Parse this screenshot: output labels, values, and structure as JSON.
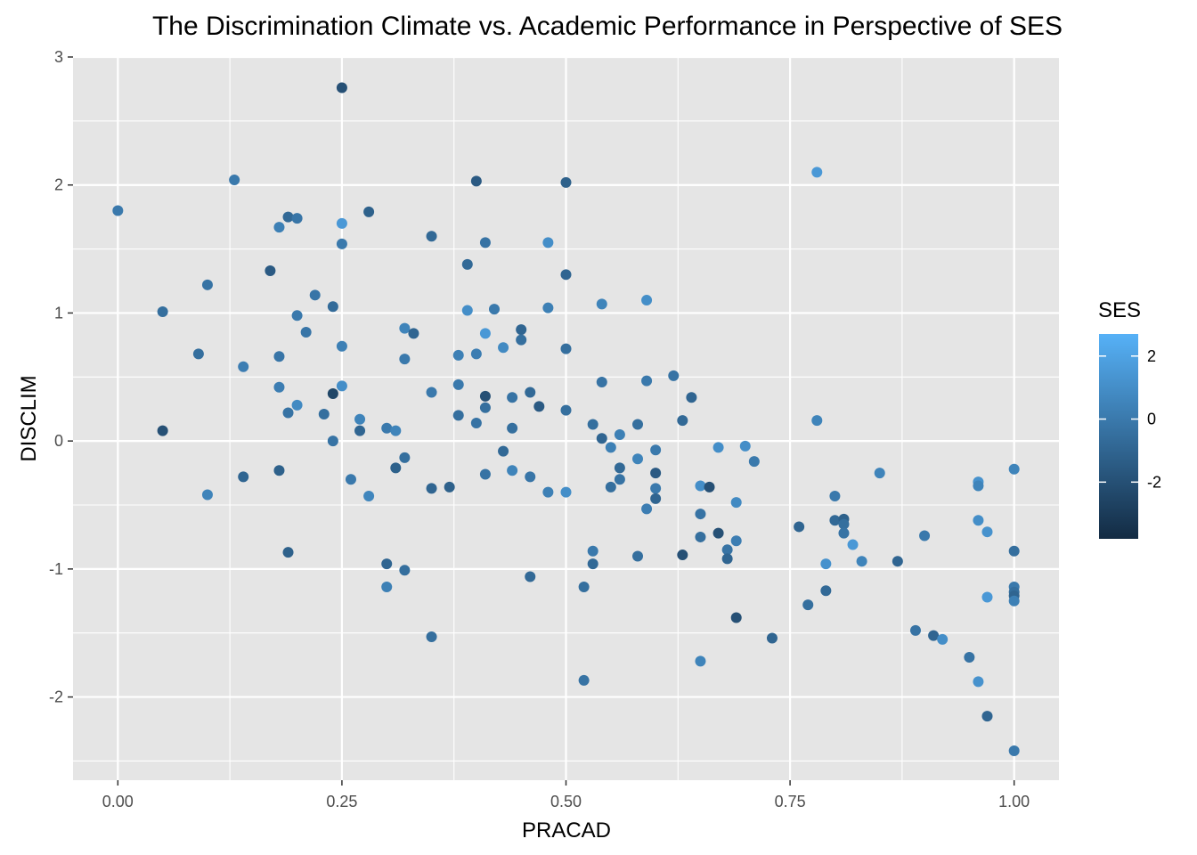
{
  "chart_data": {
    "type": "scatter",
    "title": "The Discrimination Climate vs. Academic Performance in Perspective of SES",
    "xlabel": "PRACAD",
    "ylabel": "DISCLIM",
    "xlim": [
      -0.05,
      1.05
    ],
    "ylim": [
      -2.65,
      3.0
    ],
    "x_ticks": [
      0.0,
      0.25,
      0.5,
      0.75,
      1.0
    ],
    "x_tick_labels": [
      "0.00",
      "0.25",
      "0.50",
      "0.75",
      "1.00"
    ],
    "y_ticks": [
      -2,
      -1,
      0,
      1,
      2,
      3
    ],
    "y_tick_labels": [
      "-2",
      "-1",
      "0",
      "1",
      "2",
      "3"
    ],
    "grid": true,
    "panel_background": "#e5e5e5",
    "gridline_color": "#ffffff",
    "legend": {
      "title": "SES",
      "position": "right",
      "type": "colorbar",
      "low_value": -3.8,
      "high_value": 2.7,
      "low_color": "#132b43",
      "high_color": "#56b1f7",
      "tick_values": [
        2,
        0,
        -2
      ],
      "tick_labels": [
        "2",
        "0",
        "-2"
      ]
    },
    "points": [
      {
        "x": 0.0,
        "y": 1.8,
        "ses": 0.0
      },
      {
        "x": 0.05,
        "y": 1.01,
        "ses": -0.5
      },
      {
        "x": 0.05,
        "y": 0.08,
        "ses": -2.0
      },
      {
        "x": 0.09,
        "y": 0.68,
        "ses": -0.5
      },
      {
        "x": 0.1,
        "y": 1.22,
        "ses": -0.3
      },
      {
        "x": 0.1,
        "y": -0.42,
        "ses": 0.5
      },
      {
        "x": 0.13,
        "y": 2.04,
        "ses": 0.0
      },
      {
        "x": 0.14,
        "y": 0.58,
        "ses": 0.2
      },
      {
        "x": 0.14,
        "y": -0.28,
        "ses": -1.0
      },
      {
        "x": 0.17,
        "y": 1.33,
        "ses": -1.5
      },
      {
        "x": 0.18,
        "y": 1.67,
        "ses": 0.3
      },
      {
        "x": 0.18,
        "y": 0.66,
        "ses": -0.2
      },
      {
        "x": 0.18,
        "y": 0.42,
        "ses": 0.2
      },
      {
        "x": 0.18,
        "y": -0.23,
        "ses": -1.2
      },
      {
        "x": 0.19,
        "y": 1.75,
        "ses": -0.8
      },
      {
        "x": 0.19,
        "y": 0.22,
        "ses": -0.3
      },
      {
        "x": 0.19,
        "y": -0.87,
        "ses": -1.2
      },
      {
        "x": 0.2,
        "y": 1.74,
        "ses": -0.2
      },
      {
        "x": 0.2,
        "y": 0.98,
        "ses": 0.0
      },
      {
        "x": 0.2,
        "y": 0.28,
        "ses": 0.8
      },
      {
        "x": 0.21,
        "y": 0.85,
        "ses": -0.2
      },
      {
        "x": 0.22,
        "y": 1.14,
        "ses": -0.2
      },
      {
        "x": 0.23,
        "y": 0.21,
        "ses": -0.5
      },
      {
        "x": 0.24,
        "y": 1.05,
        "ses": -0.7
      },
      {
        "x": 0.24,
        "y": 0.37,
        "ses": -2.5
      },
      {
        "x": 0.24,
        "y": 0.0,
        "ses": -0.3
      },
      {
        "x": 0.25,
        "y": 2.76,
        "ses": -2.0
      },
      {
        "x": 0.25,
        "y": 1.7,
        "ses": 1.5
      },
      {
        "x": 0.25,
        "y": 1.54,
        "ses": 0.0
      },
      {
        "x": 0.25,
        "y": 0.74,
        "ses": 0.3
      },
      {
        "x": 0.25,
        "y": 0.43,
        "ses": 1.0
      },
      {
        "x": 0.26,
        "y": -0.3,
        "ses": 0.0
      },
      {
        "x": 0.27,
        "y": 0.17,
        "ses": 0.5
      },
      {
        "x": 0.27,
        "y": 0.08,
        "ses": -1.0
      },
      {
        "x": 0.28,
        "y": 1.79,
        "ses": -1.2
      },
      {
        "x": 0.28,
        "y": -0.43,
        "ses": 0.6
      },
      {
        "x": 0.3,
        "y": 0.1,
        "ses": 0.0
      },
      {
        "x": 0.3,
        "y": -0.96,
        "ses": -1.0
      },
      {
        "x": 0.3,
        "y": -1.14,
        "ses": 0.3
      },
      {
        "x": 0.31,
        "y": 0.08,
        "ses": 0.5
      },
      {
        "x": 0.31,
        "y": -0.21,
        "ses": -1.2
      },
      {
        "x": 0.32,
        "y": 0.88,
        "ses": 0.5
      },
      {
        "x": 0.32,
        "y": 0.64,
        "ses": 0.0
      },
      {
        "x": 0.32,
        "y": -0.13,
        "ses": -0.5
      },
      {
        "x": 0.32,
        "y": -1.01,
        "ses": -0.5
      },
      {
        "x": 0.33,
        "y": 0.84,
        "ses": -1.0
      },
      {
        "x": 0.35,
        "y": 1.6,
        "ses": -0.8
      },
      {
        "x": 0.35,
        "y": 0.38,
        "ses": 0.0
      },
      {
        "x": 0.35,
        "y": -0.37,
        "ses": -1.0
      },
      {
        "x": 0.35,
        "y": -1.53,
        "ses": -0.5
      },
      {
        "x": 0.37,
        "y": -0.36,
        "ses": -1.2
      },
      {
        "x": 0.38,
        "y": 0.67,
        "ses": 0.3
      },
      {
        "x": 0.38,
        "y": 0.44,
        "ses": 0.0
      },
      {
        "x": 0.38,
        "y": 0.2,
        "ses": -0.5
      },
      {
        "x": 0.39,
        "y": 1.38,
        "ses": -0.8
      },
      {
        "x": 0.39,
        "y": 1.02,
        "ses": 1.0
      },
      {
        "x": 0.4,
        "y": 2.03,
        "ses": -1.5
      },
      {
        "x": 0.4,
        "y": 0.68,
        "ses": 0.2
      },
      {
        "x": 0.4,
        "y": 0.14,
        "ses": -0.3
      },
      {
        "x": 0.41,
        "y": 1.55,
        "ses": -0.3
      },
      {
        "x": 0.41,
        "y": 0.84,
        "ses": 1.5
      },
      {
        "x": 0.41,
        "y": 0.35,
        "ses": -2.0
      },
      {
        "x": 0.41,
        "y": 0.26,
        "ses": -0.5
      },
      {
        "x": 0.41,
        "y": -0.26,
        "ses": -0.3
      },
      {
        "x": 0.42,
        "y": 1.03,
        "ses": 0.0
      },
      {
        "x": 0.43,
        "y": 0.73,
        "ses": 0.8
      },
      {
        "x": 0.43,
        "y": -0.08,
        "ses": -0.8
      },
      {
        "x": 0.44,
        "y": 0.34,
        "ses": -0.3
      },
      {
        "x": 0.44,
        "y": 0.1,
        "ses": -0.5
      },
      {
        "x": 0.44,
        "y": -0.23,
        "ses": 0.5
      },
      {
        "x": 0.45,
        "y": 0.87,
        "ses": -1.0
      },
      {
        "x": 0.45,
        "y": 0.79,
        "ses": -0.5
      },
      {
        "x": 0.46,
        "y": 0.38,
        "ses": -0.8
      },
      {
        "x": 0.46,
        "y": -0.28,
        "ses": -0.2
      },
      {
        "x": 0.46,
        "y": -1.06,
        "ses": -0.8
      },
      {
        "x": 0.47,
        "y": 0.27,
        "ses": -1.5
      },
      {
        "x": 0.48,
        "y": 1.55,
        "ses": 1.0
      },
      {
        "x": 0.48,
        "y": 1.04,
        "ses": 0.3
      },
      {
        "x": 0.48,
        "y": -0.4,
        "ses": 0.3
      },
      {
        "x": 0.5,
        "y": 2.02,
        "ses": -1.2
      },
      {
        "x": 0.5,
        "y": 1.3,
        "ses": -1.0
      },
      {
        "x": 0.5,
        "y": 0.72,
        "ses": -0.5
      },
      {
        "x": 0.5,
        "y": 0.24,
        "ses": -0.5
      },
      {
        "x": 0.5,
        "y": -0.4,
        "ses": 1.0
      },
      {
        "x": 0.52,
        "y": -1.14,
        "ses": -0.5
      },
      {
        "x": 0.52,
        "y": -1.87,
        "ses": -0.3
      },
      {
        "x": 0.53,
        "y": 0.13,
        "ses": -0.5
      },
      {
        "x": 0.53,
        "y": -0.86,
        "ses": 0.0
      },
      {
        "x": 0.53,
        "y": -0.96,
        "ses": -0.8
      },
      {
        "x": 0.54,
        "y": 1.07,
        "ses": 0.5
      },
      {
        "x": 0.54,
        "y": 0.46,
        "ses": -0.3
      },
      {
        "x": 0.54,
        "y": 0.02,
        "ses": -1.0
      },
      {
        "x": 0.55,
        "y": -0.05,
        "ses": 0.3
      },
      {
        "x": 0.55,
        "y": -0.36,
        "ses": -0.5
      },
      {
        "x": 0.56,
        "y": 0.05,
        "ses": 0.3
      },
      {
        "x": 0.56,
        "y": -0.21,
        "ses": -0.8
      },
      {
        "x": 0.56,
        "y": -0.3,
        "ses": -0.3
      },
      {
        "x": 0.58,
        "y": 0.13,
        "ses": -0.5
      },
      {
        "x": 0.58,
        "y": -0.14,
        "ses": 0.5
      },
      {
        "x": 0.58,
        "y": -0.9,
        "ses": -0.5
      },
      {
        "x": 0.59,
        "y": 1.1,
        "ses": 1.0
      },
      {
        "x": 0.59,
        "y": 0.47,
        "ses": 0.0
      },
      {
        "x": 0.59,
        "y": -0.53,
        "ses": 0.2
      },
      {
        "x": 0.6,
        "y": -0.07,
        "ses": 0.0
      },
      {
        "x": 0.6,
        "y": -0.25,
        "ses": -1.5
      },
      {
        "x": 0.6,
        "y": -0.37,
        "ses": 0.0
      },
      {
        "x": 0.6,
        "y": -0.45,
        "ses": -1.0
      },
      {
        "x": 0.62,
        "y": 0.51,
        "ses": -0.3
      },
      {
        "x": 0.63,
        "y": 0.16,
        "ses": -0.8
      },
      {
        "x": 0.63,
        "y": -0.89,
        "ses": -2.0
      },
      {
        "x": 0.64,
        "y": 0.34,
        "ses": -1.0
      },
      {
        "x": 0.65,
        "y": -0.35,
        "ses": 1.0
      },
      {
        "x": 0.65,
        "y": -0.57,
        "ses": -0.3
      },
      {
        "x": 0.65,
        "y": -0.75,
        "ses": -0.5
      },
      {
        "x": 0.65,
        "y": -1.72,
        "ses": 0.5
      },
      {
        "x": 0.66,
        "y": -0.36,
        "ses": -2.0
      },
      {
        "x": 0.67,
        "y": -0.05,
        "ses": 1.0
      },
      {
        "x": 0.67,
        "y": -0.72,
        "ses": -2.0
      },
      {
        "x": 0.68,
        "y": -0.85,
        "ses": -0.3
      },
      {
        "x": 0.68,
        "y": -0.92,
        "ses": -1.0
      },
      {
        "x": 0.69,
        "y": -0.48,
        "ses": 0.8
      },
      {
        "x": 0.69,
        "y": -0.78,
        "ses": 0.2
      },
      {
        "x": 0.69,
        "y": -1.38,
        "ses": -2.0
      },
      {
        "x": 0.7,
        "y": -0.04,
        "ses": 1.0
      },
      {
        "x": 0.71,
        "y": -0.16,
        "ses": 0.0
      },
      {
        "x": 0.73,
        "y": -1.54,
        "ses": -1.0
      },
      {
        "x": 0.76,
        "y": -0.67,
        "ses": -1.0
      },
      {
        "x": 0.77,
        "y": -1.28,
        "ses": -0.5
      },
      {
        "x": 0.78,
        "y": 2.1,
        "ses": 1.5
      },
      {
        "x": 0.78,
        "y": 0.16,
        "ses": 0.5
      },
      {
        "x": 0.79,
        "y": -0.96,
        "ses": 1.2
      },
      {
        "x": 0.79,
        "y": -1.17,
        "ses": -0.8
      },
      {
        "x": 0.8,
        "y": -0.43,
        "ses": 0.0
      },
      {
        "x": 0.8,
        "y": -0.62,
        "ses": -0.8
      },
      {
        "x": 0.81,
        "y": -0.61,
        "ses": -1.2
      },
      {
        "x": 0.81,
        "y": -0.65,
        "ses": -0.5
      },
      {
        "x": 0.81,
        "y": -0.72,
        "ses": -0.3
      },
      {
        "x": 0.82,
        "y": -0.81,
        "ses": 1.5
      },
      {
        "x": 0.83,
        "y": -0.94,
        "ses": 0.5
      },
      {
        "x": 0.85,
        "y": -0.25,
        "ses": 0.5
      },
      {
        "x": 0.87,
        "y": -0.94,
        "ses": -1.0
      },
      {
        "x": 0.89,
        "y": -1.48,
        "ses": -0.3
      },
      {
        "x": 0.9,
        "y": -0.74,
        "ses": 0.0
      },
      {
        "x": 0.91,
        "y": -1.52,
        "ses": -1.0
      },
      {
        "x": 0.92,
        "y": -1.55,
        "ses": 1.0
      },
      {
        "x": 0.95,
        "y": -1.69,
        "ses": -0.3
      },
      {
        "x": 0.96,
        "y": -0.32,
        "ses": 1.2
      },
      {
        "x": 0.96,
        "y": -0.35,
        "ses": 0.5
      },
      {
        "x": 0.96,
        "y": -0.62,
        "ses": 1.0
      },
      {
        "x": 0.96,
        "y": -1.88,
        "ses": 1.2
      },
      {
        "x": 0.97,
        "y": -0.71,
        "ses": 1.2
      },
      {
        "x": 0.97,
        "y": -1.22,
        "ses": 1.5
      },
      {
        "x": 0.97,
        "y": -2.15,
        "ses": -1.0
      },
      {
        "x": 1.0,
        "y": -0.22,
        "ses": 0.5
      },
      {
        "x": 1.0,
        "y": -0.86,
        "ses": -0.5
      },
      {
        "x": 1.0,
        "y": -1.14,
        "ses": 0.0
      },
      {
        "x": 1.0,
        "y": -1.18,
        "ses": -0.5
      },
      {
        "x": 1.0,
        "y": -1.21,
        "ses": -1.0
      },
      {
        "x": 1.0,
        "y": -1.25,
        "ses": 0.3
      },
      {
        "x": 1.0,
        "y": -2.42,
        "ses": 0.0
      }
    ]
  }
}
